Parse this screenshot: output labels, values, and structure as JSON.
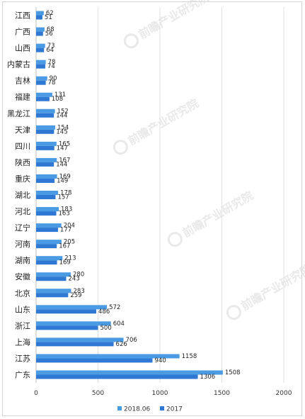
{
  "chart_data": {
    "type": "bar",
    "orientation": "horizontal",
    "title": "",
    "xlabel": "",
    "ylabel": "",
    "xlim": [
      0,
      2000
    ],
    "x_ticks": [
      0,
      500,
      1000,
      1500,
      2000
    ],
    "grid": true,
    "legend_position": "bottom",
    "categories": [
      "江西",
      "广西",
      "山西",
      "内蒙古",
      "吉林",
      "福建",
      "黑龙江",
      "天津",
      "四川",
      "陕西",
      "重庆",
      "湖北",
      "河北",
      "辽宁",
      "河南",
      "湖南",
      "安徽",
      "北京",
      "山东",
      "浙江",
      "上海",
      "江苏",
      "广东"
    ],
    "series": [
      {
        "name": "2018.06",
        "color": "#4a9be3",
        "values": [
          62,
          68,
          73,
          78,
          90,
          131,
          152,
          154,
          165,
          167,
          169,
          178,
          183,
          204,
          205,
          213,
          280,
          283,
          572,
          604,
          706,
          1158,
          1508
        ]
      },
      {
        "name": "2017",
        "color": "#2f78d4",
        "values": [
          51,
          56,
          64,
          74,
          78,
          108,
          144,
          145,
          147,
          144,
          149,
          157,
          163,
          177,
          167,
          169,
          243,
          259,
          486,
          500,
          626,
          940,
          1306
        ]
      }
    ]
  },
  "watermark": {
    "text": "前瞻产业研究院",
    "icon": "watermark-logo-icon"
  }
}
